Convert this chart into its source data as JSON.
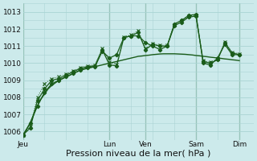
{
  "background_color": "#cceaeb",
  "grid_color": "#aad4d4",
  "line_color": "#1a5c1a",
  "xlabel": "Pression niveau de la mer( hPa )",
  "xlabel_fontsize": 8,
  "ylim": [
    1005.5,
    1013.5
  ],
  "yticks": [
    1006,
    1007,
    1008,
    1009,
    1010,
    1011,
    1012,
    1013
  ],
  "x_day_labels": [
    "Jeu",
    "Lun",
    "Ven",
    "Sam",
    "Dim"
  ],
  "x_day_positions": [
    0,
    48,
    68,
    96,
    120
  ],
  "xlim": [
    0,
    128
  ],
  "line1_x": [
    0,
    2,
    4,
    6,
    8,
    10,
    12,
    14,
    16,
    18,
    20,
    22,
    24,
    26,
    28,
    30,
    32,
    34,
    36,
    38,
    40,
    42,
    44,
    46,
    48,
    50,
    52,
    54,
    56,
    58,
    60,
    62,
    64,
    66,
    68,
    70,
    72,
    74,
    76,
    78,
    80,
    82,
    84,
    86,
    88,
    90,
    92,
    94,
    96,
    98,
    100,
    102,
    104,
    106,
    108,
    110,
    112,
    114,
    116,
    118,
    120
  ],
  "line1_y": [
    1005.8,
    1006.1,
    1006.5,
    1007.0,
    1007.5,
    1007.9,
    1008.2,
    1008.5,
    1008.7,
    1008.85,
    1009.0,
    1009.1,
    1009.2,
    1009.3,
    1009.4,
    1009.5,
    1009.6,
    1009.65,
    1009.7,
    1009.75,
    1009.8,
    1009.85,
    1009.9,
    1009.95,
    1010.0,
    1010.05,
    1010.1,
    1010.15,
    1010.2,
    1010.25,
    1010.3,
    1010.35,
    1010.4,
    1010.42,
    1010.45,
    1010.47,
    1010.5,
    1010.52,
    1010.54,
    1010.55,
    1010.55,
    1010.55,
    1010.55,
    1010.54,
    1010.53,
    1010.52,
    1010.5,
    1010.48,
    1010.45,
    1010.43,
    1010.4,
    1010.38,
    1010.35,
    1010.33,
    1010.3,
    1010.28,
    1010.25,
    1010.23,
    1010.2,
    1010.18,
    1010.15
  ],
  "line2_x": [
    0,
    4,
    8,
    12,
    16,
    20,
    24,
    28,
    32,
    36,
    40,
    44,
    48,
    52,
    56,
    60,
    64,
    68,
    72,
    76,
    80,
    84,
    88,
    92,
    96,
    100,
    104,
    108,
    112,
    116,
    120
  ],
  "line2_y": [
    1005.8,
    1006.5,
    1007.5,
    1008.3,
    1008.8,
    1009.0,
    1009.2,
    1009.4,
    1009.6,
    1009.75,
    1009.8,
    1010.7,
    1010.3,
    1010.5,
    1011.5,
    1011.6,
    1011.6,
    1011.2,
    1011.0,
    1010.8,
    1011.0,
    1012.3,
    1012.5,
    1012.8,
    1012.85,
    1010.0,
    1009.9,
    1010.3,
    1011.1,
    1010.5,
    1010.5
  ],
  "line3_x": [
    0,
    4,
    8,
    12,
    16,
    20,
    24,
    28,
    32,
    36,
    40,
    44,
    48,
    52,
    56,
    60,
    64,
    68,
    72,
    76,
    80,
    84,
    88,
    92,
    96,
    100,
    104,
    108,
    112,
    116,
    120
  ],
  "line3_y": [
    1005.8,
    1006.2,
    1007.8,
    1008.5,
    1009.0,
    1009.1,
    1009.3,
    1009.5,
    1009.7,
    1009.8,
    1009.85,
    1010.8,
    1009.9,
    1009.85,
    1011.5,
    1011.6,
    1011.8,
    1010.8,
    1011.1,
    1011.0,
    1011.0,
    1012.2,
    1012.4,
    1012.7,
    1012.75,
    1010.1,
    1010.0,
    1010.2,
    1011.2,
    1010.6,
    1010.5
  ],
  "line_dotted_x": [
    0,
    4,
    8,
    12,
    16,
    20,
    24,
    28,
    32,
    36,
    40,
    44,
    48,
    52,
    56,
    60,
    64,
    68,
    72,
    76,
    80,
    84,
    88,
    92,
    96,
    100,
    104,
    108,
    112,
    116,
    120
  ],
  "line_dotted_y": [
    1005.8,
    1006.3,
    1008.0,
    1008.8,
    1009.1,
    1009.2,
    1009.35,
    1009.55,
    1009.75,
    1009.85,
    1009.9,
    1010.85,
    1010.05,
    1009.95,
    1011.55,
    1011.65,
    1011.9,
    1010.85,
    1011.15,
    1011.05,
    1011.05,
    1012.25,
    1012.45,
    1012.75,
    1012.8,
    1010.15,
    1010.05,
    1010.25,
    1011.25,
    1010.65,
    1010.55
  ]
}
